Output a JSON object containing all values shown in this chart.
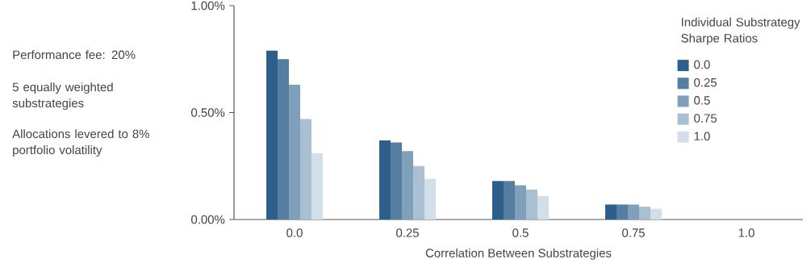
{
  "chart_data": {
    "type": "bar",
    "xlabel": "Correlation Between Substrategies",
    "legend_title": "Individual Substrategy Sharpe Ratios",
    "legend": "top right",
    "categories": [
      "0.0",
      "0.25",
      "0.5",
      "0.75",
      "1.0"
    ],
    "ylim": [
      0,
      1.0
    ],
    "yticks": [
      {
        "value": 0,
        "label": "0.00%"
      },
      {
        "value": 0.5,
        "label": "0.50%"
      },
      {
        "value": 1.0,
        "label": "1.00%"
      }
    ],
    "series": [
      {
        "name": "0.0",
        "color": "#2d5f8a",
        "values": [
          0.79,
          0.37,
          0.18,
          0.07,
          0
        ]
      },
      {
        "name": "0.25",
        "color": "#557ea0",
        "values": [
          0.75,
          0.36,
          0.18,
          0.07,
          0
        ]
      },
      {
        "name": "0.5",
        "color": "#7fa0bb",
        "values": [
          0.63,
          0.32,
          0.16,
          0.07,
          0
        ]
      },
      {
        "name": "0.75",
        "color": "#aabfd2",
        "values": [
          0.47,
          0.25,
          0.14,
          0.06,
          0
        ]
      },
      {
        "name": "1.0",
        "color": "#d3dfe8",
        "values": [
          0.31,
          0.19,
          0.11,
          0.05,
          0
        ]
      }
    ],
    "annotations": [
      "Performance fee: 20%",
      "5 equally weighted substrategies",
      "Allocations levered to 8% portfolio volatility"
    ]
  }
}
